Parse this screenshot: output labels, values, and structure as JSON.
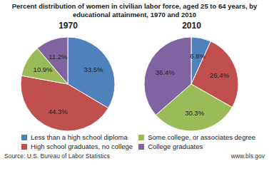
{
  "chart_data": {
    "type": "pie",
    "title": "Percent distribution of women in civilian labor force, aged 25 to 64 years, by educational attainment, 1970 and 2010",
    "categories": [
      "Less than a high school diploma",
      "High school graduates, no college",
      "Some college, or associates degree",
      "College graduates"
    ],
    "colors": [
      "#4f81bd",
      "#c0504d",
      "#9bbb59",
      "#8064a2"
    ],
    "series": [
      {
        "name": "1970",
        "values": [
          33.5,
          44.3,
          10.9,
          11.2
        ],
        "value_labels": [
          "33.5%",
          "44.3%",
          "10.9%",
          "11.2%"
        ]
      },
      {
        "name": "2010",
        "values": [
          6.8,
          26.4,
          30.3,
          36.4
        ],
        "value_labels": [
          "6.8%",
          "26.4%",
          "30.3%",
          "36.4%"
        ]
      }
    ],
    "data_labels": true,
    "legend": "bottom",
    "annotations": [
      "Source: U.S. Bureau of Labor Statistics",
      "www.bls.gov"
    ]
  }
}
